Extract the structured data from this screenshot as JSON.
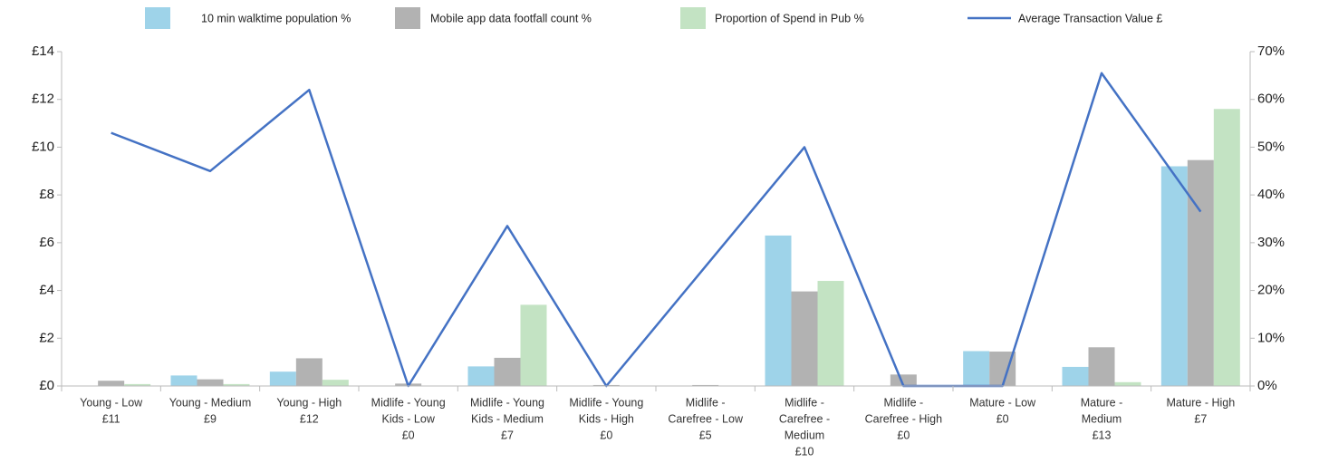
{
  "chart_data": {
    "type": "bar-line",
    "categories": [
      [
        "Young - Low",
        "£11"
      ],
      [
        "Young - Medium",
        "£9"
      ],
      [
        "Young - High",
        "£12"
      ],
      [
        "Midlife - Young",
        "Kids - Low",
        "£0"
      ],
      [
        "Midlife - Young",
        "Kids - Medium",
        "£7"
      ],
      [
        "Midlife - Young",
        "Kids - High",
        "£0"
      ],
      [
        "Midlife -",
        "Carefree - Low",
        "£5"
      ],
      [
        "Midlife -",
        "Carefree -",
        "Medium",
        "£10"
      ],
      [
        "Midlife -",
        "Carefree - High",
        "£0"
      ],
      [
        "Mature - Low",
        "£0"
      ],
      [
        "Mature -",
        "Medium",
        "£13"
      ],
      [
        "Mature - High",
        "£7"
      ]
    ],
    "series": [
      {
        "name": "10 min walktime population %",
        "color": "#9ed3e9",
        "axis": "y2",
        "values": [
          0,
          2.2,
          3.0,
          0,
          4.1,
          0,
          0,
          31.5,
          0,
          7.3,
          4.0,
          46
        ]
      },
      {
        "name": "Mobile app data footfall count %",
        "color": "#b2b2b2",
        "axis": "y2",
        "values": [
          1.1,
          1.4,
          5.8,
          0.5,
          5.9,
          0.2,
          0.2,
          19.8,
          2.4,
          7.2,
          8.1,
          47.3
        ]
      },
      {
        "name": "Proportion of Spend in Pub %",
        "color": "#c3e3c3",
        "axis": "y2",
        "values": [
          0.4,
          0.4,
          1.3,
          0,
          17,
          0,
          0,
          22,
          0,
          0,
          0.8,
          58
        ]
      },
      {
        "name": "Average Transaction Value £",
        "color": "#4472c4",
        "type": "line",
        "values": [
          10.6,
          9.0,
          12.4,
          0,
          6.7,
          0,
          5.0,
          10.0,
          0,
          0,
          13.1,
          7.3
        ]
      }
    ],
    "ylim": [
      0,
      14
    ],
    "yticks": [
      {
        "value": 0,
        "label": "£0"
      },
      {
        "value": 2,
        "label": "£2"
      },
      {
        "value": 4,
        "label": "£4"
      },
      {
        "value": 6,
        "label": "£6"
      },
      {
        "value": 8,
        "label": "£8"
      },
      {
        "value": 10,
        "label": "£10"
      },
      {
        "value": 12,
        "label": "£12"
      },
      {
        "value": 14,
        "label": "£14"
      }
    ],
    "y2lim": [
      0,
      70
    ],
    "y2ticks": [
      {
        "value": 0,
        "label": "0%"
      },
      {
        "value": 10,
        "label": "10%"
      },
      {
        "value": 20,
        "label": "20%"
      },
      {
        "value": 30,
        "label": "30%"
      },
      {
        "value": 40,
        "label": "40%"
      },
      {
        "value": 50,
        "label": "50%"
      },
      {
        "value": 60,
        "label": "60%"
      },
      {
        "value": 70,
        "label": "70%"
      }
    ],
    "legend": "top"
  }
}
